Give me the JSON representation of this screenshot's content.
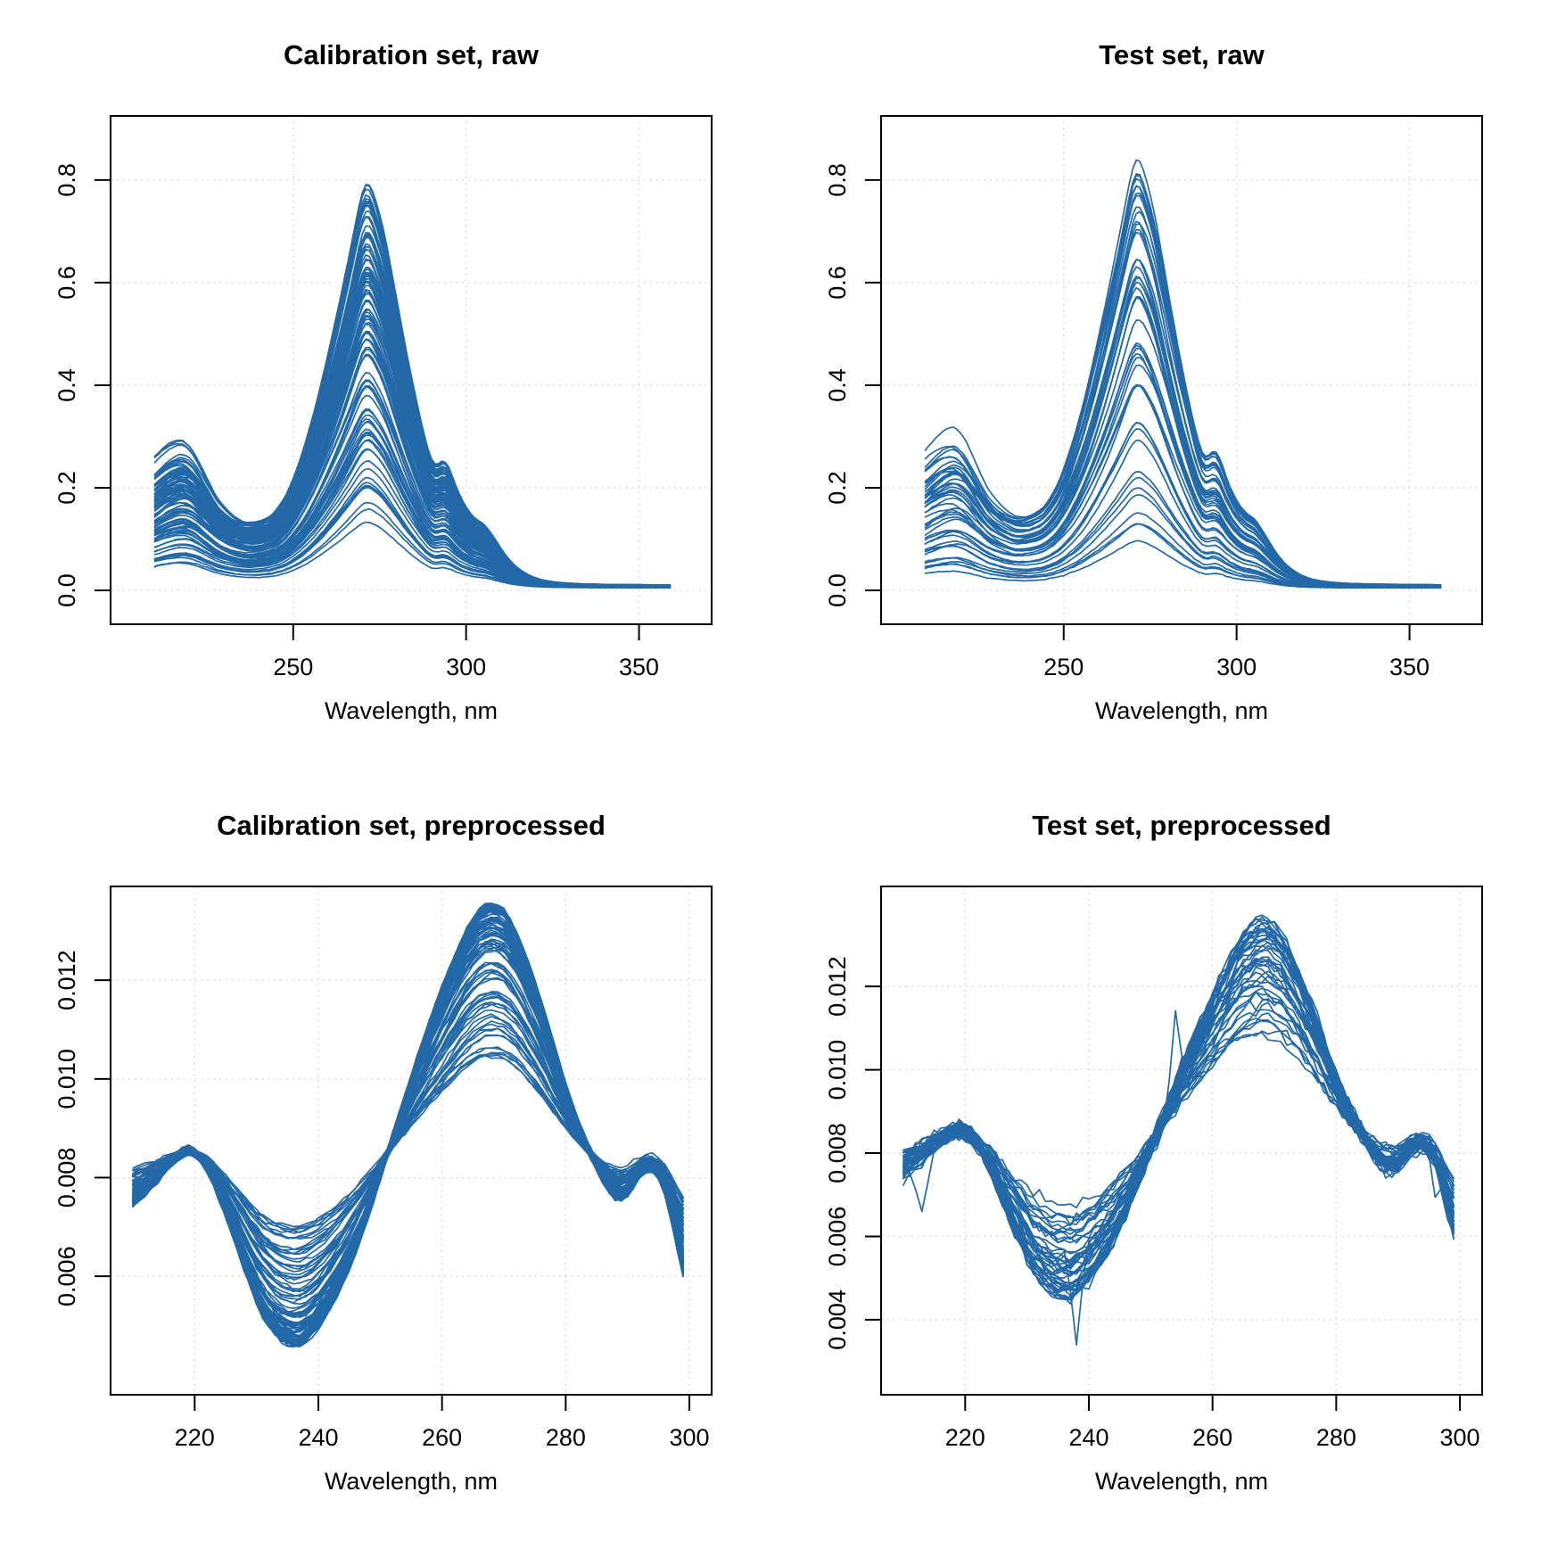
{
  "page": {
    "background": "#ffffff"
  },
  "chart_data": [
    {
      "id": "calibration-raw",
      "type": "line",
      "title": "Calibration set, raw",
      "xlabel": "Wavelength, nm",
      "x_ticks": [
        250,
        300,
        350
      ],
      "x_tick_labels": [
        "250",
        "300",
        "350"
      ],
      "y_ticks": [
        0.0,
        0.2,
        0.4,
        0.6,
        0.8
      ],
      "y_tick_labels": [
        "0.0",
        "0.2",
        "0.4",
        "0.6",
        "0.8"
      ],
      "x_range": [
        197.2,
        371.0
      ],
      "y_range": [
        -0.066,
        0.925
      ],
      "grid": true,
      "legend": "none",
      "n_lines": 100,
      "seed": 7,
      "model": "raw",
      "line_color": "#2369a8",
      "scale_range": [
        0.13,
        1.0
      ],
      "scale_pow": 0.55,
      "peak_max": 0.8,
      "wiggle": 0.022,
      "noise": 0.0009,
      "lift": 0.5,
      "floor": 0.004,
      "base_curve": {
        "wavelength": [
          210,
          214,
          218,
          221,
          224,
          228,
          232,
          236,
          240,
          244,
          248,
          252,
          256,
          260,
          263,
          266,
          269,
          271,
          273,
          276,
          279,
          282,
          285,
          287,
          289,
          291,
          293,
          295,
          297,
          300,
          303,
          305,
          308,
          311,
          314,
          318,
          322,
          327,
          333,
          340,
          348,
          354,
          359
        ],
        "value": [
          0.26,
          0.295,
          0.315,
          0.3,
          0.26,
          0.205,
          0.175,
          0.158,
          0.162,
          0.178,
          0.225,
          0.31,
          0.425,
          0.565,
          0.68,
          0.8,
          0.93,
          1.0,
          0.965,
          0.875,
          0.74,
          0.6,
          0.475,
          0.4,
          0.33,
          0.285,
          0.315,
          0.3,
          0.245,
          0.195,
          0.165,
          0.16,
          0.125,
          0.085,
          0.055,
          0.032,
          0.02,
          0.014,
          0.011,
          0.0095,
          0.009,
          0.0085,
          0.008
        ]
      }
    },
    {
      "id": "test-raw",
      "type": "line",
      "title": "Test set, raw",
      "xlabel": "Wavelength, nm",
      "x_ticks": [
        250,
        300,
        350
      ],
      "x_tick_labels": [
        "250",
        "300",
        "350"
      ],
      "y_ticks": [
        0.0,
        0.2,
        0.4,
        0.6,
        0.8
      ],
      "y_tick_labels": [
        "0.0",
        "0.2",
        "0.4",
        "0.6",
        "0.8"
      ],
      "x_range": [
        197.2,
        371.0
      ],
      "y_range": [
        -0.066,
        0.925
      ],
      "grid": true,
      "legend": "none",
      "n_lines": 46,
      "seed": 21,
      "model": "raw",
      "line_color": "#2369a8",
      "scale_range": [
        0.07,
        1.069
      ],
      "scale_pow": 0.75,
      "peak_max": 0.8,
      "wiggle": 0.03,
      "noise": 0.0012,
      "lift": 0.6,
      "floor": 0.004,
      "base_curve": {
        "wavelength": [
          210,
          214,
          218,
          221,
          224,
          228,
          232,
          236,
          240,
          244,
          248,
          252,
          256,
          260,
          263,
          266,
          269,
          271,
          273,
          276,
          279,
          282,
          285,
          287,
          289,
          291,
          293,
          295,
          297,
          300,
          303,
          305,
          308,
          311,
          314,
          318,
          322,
          327,
          333,
          340,
          348,
          354,
          359
        ],
        "value": [
          0.26,
          0.295,
          0.315,
          0.3,
          0.26,
          0.205,
          0.175,
          0.158,
          0.162,
          0.178,
          0.225,
          0.31,
          0.425,
          0.565,
          0.68,
          0.8,
          0.93,
          1.0,
          0.965,
          0.875,
          0.74,
          0.6,
          0.475,
          0.4,
          0.33,
          0.285,
          0.315,
          0.3,
          0.245,
          0.195,
          0.165,
          0.16,
          0.125,
          0.085,
          0.055,
          0.032,
          0.02,
          0.014,
          0.011,
          0.0095,
          0.009,
          0.0085,
          0.008
        ]
      }
    },
    {
      "id": "calibration-preprocessed",
      "type": "line",
      "title": "Calibration set, preprocessed",
      "xlabel": "Wavelength, nm",
      "x_ticks": [
        220,
        240,
        260,
        280,
        300
      ],
      "x_tick_labels": [
        "220",
        "240",
        "260",
        "280",
        "300"
      ],
      "y_ticks": [
        0.006,
        0.008,
        0.01,
        0.012
      ],
      "y_tick_labels": [
        "0.006",
        "0.008",
        "0.010",
        "0.012"
      ],
      "x_range": [
        206.4,
        303.6
      ],
      "y_range": [
        0.0036,
        0.0139
      ],
      "grid": true,
      "legend": "none",
      "n_lines": 100,
      "seed": 13,
      "model": "pre",
      "line_color": "#2369a8",
      "d_max": 0.00045,
      "d_span": 0.0031,
      "d_pow": 2.4,
      "contrast_center": 0.0085,
      "contrast_scale": 0.0046,
      "wiggle": 7e-05,
      "noise": 5e-05,
      "spikes": [],
      "base_curve": {
        "wavelength": [
          210,
          213,
          216,
          219,
          222,
          225,
          228,
          231,
          234,
          237,
          240,
          243,
          246,
          249,
          252,
          255,
          258,
          261,
          264,
          266,
          268,
          270,
          272,
          274,
          276,
          278,
          280,
          283,
          286,
          288,
          290,
          292,
          294,
          296,
          298,
          299
        ],
        "value": [
          0.0076,
          0.0079,
          0.0083,
          0.0086,
          0.0083,
          0.0074,
          0.0064,
          0.0055,
          0.00505,
          0.00495,
          0.0053,
          0.0059,
          0.0067,
          0.0077,
          0.0088,
          0.0099,
          0.0109,
          0.0118,
          0.0126,
          0.01295,
          0.0131,
          0.013,
          0.0126,
          0.012,
          0.0113,
          0.0105,
          0.0097,
          0.00875,
          0.008,
          0.00765,
          0.0077,
          0.00815,
          0.0083,
          0.0079,
          0.0068,
          0.0063
        ]
      }
    },
    {
      "id": "test-preprocessed",
      "type": "line",
      "title": "Test set, preprocessed",
      "xlabel": "Wavelength, nm",
      "x_ticks": [
        220,
        240,
        260,
        280,
        300
      ],
      "x_tick_labels": [
        "220",
        "240",
        "260",
        "280",
        "300"
      ],
      "y_ticks": [
        0.004,
        0.006,
        0.008,
        0.01,
        0.012
      ],
      "y_tick_labels": [
        "0.004",
        "0.006",
        "0.008",
        "0.010",
        "0.012"
      ],
      "x_range": [
        206.4,
        303.6
      ],
      "y_range": [
        0.0022,
        0.0144
      ],
      "grid": true,
      "legend": "none",
      "n_lines": 46,
      "seed": 29,
      "model": "pre",
      "line_color": "#2369a8",
      "d_max": 0.00045,
      "d_span": 0.0028,
      "d_pow": 2.0,
      "contrast_center": 0.0085,
      "contrast_scale": 0.0046,
      "wiggle": 0.00012,
      "noise": 0.00017,
      "spikes": [
        {
          "line": 5,
          "wavelength": 238,
          "amp": -0.0024
        },
        {
          "line": 9,
          "wavelength": 254,
          "amp": 0.0021
        },
        {
          "line": 14,
          "wavelength": 213,
          "amp": -0.0012
        },
        {
          "line": 22,
          "wavelength": 296,
          "amp": -0.001
        }
      ],
      "base_curve": {
        "wavelength": [
          210,
          213,
          216,
          219,
          222,
          225,
          228,
          231,
          234,
          237,
          240,
          243,
          246,
          249,
          252,
          255,
          258,
          261,
          264,
          266,
          268,
          270,
          272,
          274,
          276,
          278,
          280,
          283,
          286,
          288,
          290,
          292,
          294,
          296,
          298,
          299
        ],
        "value": [
          0.0076,
          0.0079,
          0.0083,
          0.0086,
          0.0083,
          0.0074,
          0.0064,
          0.0055,
          0.00505,
          0.00495,
          0.0053,
          0.0059,
          0.0067,
          0.0077,
          0.0088,
          0.0099,
          0.0109,
          0.0118,
          0.0126,
          0.01295,
          0.0131,
          0.013,
          0.0126,
          0.012,
          0.0113,
          0.0105,
          0.0097,
          0.00875,
          0.008,
          0.00765,
          0.0077,
          0.00815,
          0.0083,
          0.0079,
          0.0068,
          0.0063
        ]
      }
    }
  ],
  "style": {
    "grid_color": "#d4d4d4",
    "axis_color": "#000000",
    "line_width": 1.7
  }
}
